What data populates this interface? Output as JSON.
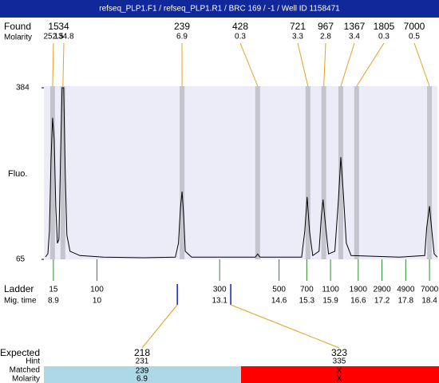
{
  "header": {
    "title": "refseq_PLP1.F1 / refseq_PLP1.R1 / BRC 169 / -1 / Well ID 1158471"
  },
  "chart_data": {
    "type": "line",
    "y_label": "Fluo.",
    "color": "#000000",
    "xlim": [
      8.66,
      18.6
    ],
    "ylim": [
      65,
      384
    ],
    "yticks": [
      65,
      384
    ],
    "x": [
      8.7,
      8.76,
      8.8,
      8.84,
      8.88,
      8.92,
      8.96,
      9.0,
      9.04,
      9.08,
      9.12,
      9.16,
      9.2,
      9.24,
      9.32,
      9.57,
      10.17,
      11.18,
      11.98,
      12.06,
      12.11,
      12.15,
      12.19,
      12.23,
      12.39,
      14.0,
      14.06,
      14.12,
      15.17,
      15.25,
      15.31,
      15.37,
      15.45,
      15.61,
      15.67,
      15.71,
      15.77,
      15.85,
      16.01,
      16.1,
      16.16,
      16.22,
      16.3,
      16.42,
      17.63,
      18.28,
      18.33,
      18.4,
      18.46,
      18.52,
      18.6
    ],
    "values": [
      69.5,
      75.4,
      117,
      250,
      328,
      288,
      162,
      95,
      102,
      250,
      384,
      384,
      221,
      110,
      80,
      72,
      69,
      68,
      69,
      95,
      161,
      191,
      147,
      80,
      69,
      69,
      75,
      69,
      69,
      117,
      181,
      117,
      72,
      80,
      147,
      176,
      132,
      75,
      80,
      176,
      255,
      191,
      95,
      72,
      69,
      72,
      124,
      164,
      117,
      75,
      69
    ],
    "found": {
      "label": "Found",
      "molarity_label": "Molarity",
      "sizes": [
        15,
        34,
        239,
        428,
        721,
        967,
        1367,
        1805,
        7000
      ],
      "times": [
        8.88,
        9.14,
        12.15,
        14.06,
        15.33,
        15.73,
        16.16,
        16.56,
        18.4
      ],
      "molarity": [
        252.5,
        134.8,
        6.9,
        0.3,
        3.3,
        2.8,
        3.4,
        0.3,
        0.5
      ]
    },
    "ladder": {
      "label": "Ladder",
      "time_label": "Mig. time",
      "sizes": [
        15,
        100,
        300,
        500,
        700,
        1100,
        1900,
        2900,
        4900,
        7000
      ],
      "times": [
        8.9,
        10,
        13.1,
        14.6,
        15.3,
        15.9,
        16.6,
        17.2,
        17.8,
        18.4
      ]
    },
    "expected": {
      "label": "Expected",
      "sizes": [
        218,
        323
      ],
      "times": [
        12.03,
        13.38
      ]
    }
  },
  "table": {
    "row_labels": [
      "Hint",
      "Matched",
      "Molarity"
    ],
    "columns": [
      {
        "hint": 231,
        "matched": 239,
        "molarity": 6.9
      },
      {
        "hint": 335,
        "matched": "X",
        "molarity": "X"
      }
    ]
  }
}
